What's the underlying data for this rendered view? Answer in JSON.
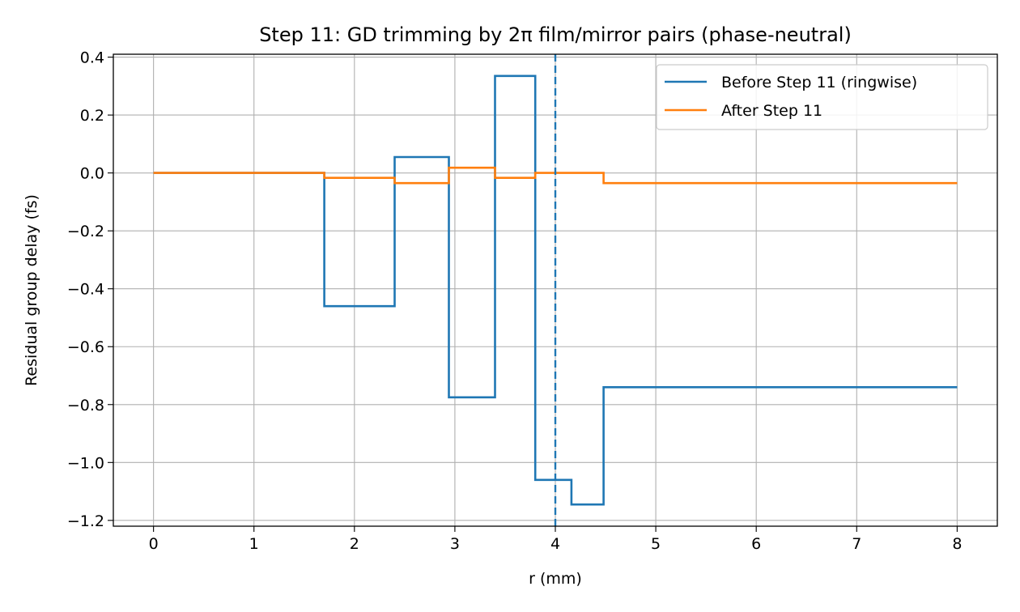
{
  "chart_data": {
    "type": "line",
    "title": "Step 11: GD trimming by 2π film/mirror pairs (phase-neutral)",
    "xlabel": "r (mm)",
    "ylabel": "Residual group delay (fs)",
    "xlim": [
      -0.4,
      8.4
    ],
    "ylim": [
      -1.22,
      0.41
    ],
    "xticks": [
      0,
      1,
      2,
      3,
      4,
      5,
      6,
      7,
      8
    ],
    "xtick_labels": [
      "0",
      "1",
      "2",
      "3",
      "4",
      "5",
      "6",
      "7",
      "8"
    ],
    "yticks": [
      0.4,
      0.2,
      0.0,
      -0.2,
      -0.4,
      -0.6,
      -0.8,
      -1.0,
      -1.2
    ],
    "ytick_labels": [
      "0.4",
      "0.2",
      "0.0",
      "−0.2",
      "−0.4",
      "−0.6",
      "−0.8",
      "−1.0",
      "−1.2"
    ],
    "grid": true,
    "legend_position": "top-right",
    "vertical_line": {
      "x": 4.0,
      "style": "dashed",
      "color": "#1f77b4"
    },
    "series": [
      {
        "name": "Before Step 11 (ringwise)",
        "color": "#1f77b4",
        "step": true,
        "x": [
          0,
          1.7,
          1.7,
          2.4,
          2.4,
          2.94,
          2.94,
          3.4,
          3.4,
          3.8,
          3.8,
          4.16,
          4.16,
          4.48,
          4.48,
          8.0
        ],
        "y": [
          0,
          0,
          -0.46,
          -0.46,
          0.055,
          0.055,
          -0.775,
          -0.775,
          0.335,
          0.335,
          -1.06,
          -1.06,
          -1.145,
          -1.145,
          -0.74,
          -0.74
        ]
      },
      {
        "name": "After Step 11",
        "color": "#ff7f0e",
        "step": true,
        "x": [
          0,
          1.7,
          1.7,
          2.4,
          2.4,
          2.94,
          2.94,
          3.4,
          3.4,
          3.8,
          3.8,
          4.48,
          4.48,
          8.0
        ],
        "y": [
          0,
          0,
          -0.017,
          -0.017,
          -0.035,
          -0.035,
          0.018,
          0.018,
          -0.017,
          -0.017,
          0.0,
          0.0,
          -0.035,
          -0.035
        ]
      }
    ]
  }
}
